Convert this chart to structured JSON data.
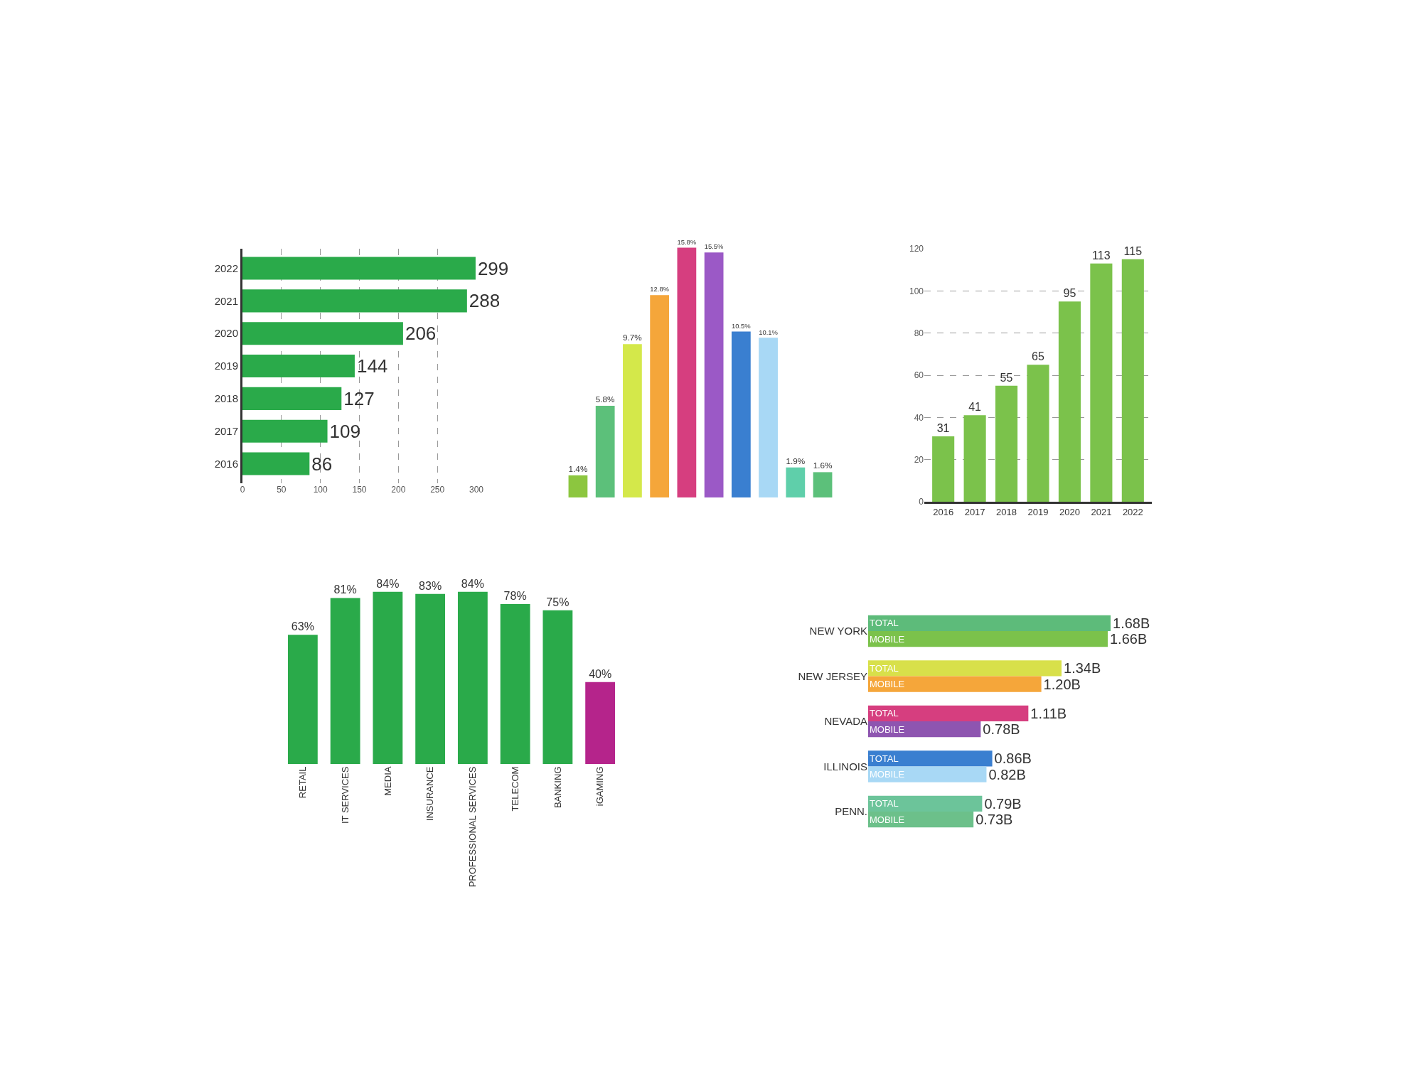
{
  "chart_data": [
    {
      "type": "bar",
      "orientation": "horizontal",
      "categories": [
        "2022",
        "2021",
        "2020",
        "2019",
        "2018",
        "2017",
        "2016"
      ],
      "values": [
        299,
        288,
        206,
        144,
        127,
        109,
        86
      ],
      "color": "#2aaa4a",
      "xlim": [
        0,
        300
      ],
      "xticks": [
        0,
        50,
        100,
        150,
        200,
        250,
        300
      ],
      "grid": "x",
      "data_labels": true
    },
    {
      "type": "bar",
      "categories": [
        null,
        null,
        null,
        null,
        null,
        null,
        null,
        null,
        null,
        null
      ],
      "values": [
        1.4,
        5.8,
        9.7,
        12.8,
        15.8,
        15.5,
        10.5,
        10.1,
        1.9,
        1.6
      ],
      "colors": [
        "#8cc63f",
        "#5cc07a",
        "#d4e84a",
        "#f5a63a",
        "#d63e7f",
        "#9b59c6",
        "#3a7fd0",
        "#a8d8f5",
        "#5fcfaa",
        "#5cc07a"
      ],
      "value_labels": [
        "1.4%",
        "5.8%",
        "9.7%",
        "12.8%",
        "15.8%",
        "15.5%",
        "10.5%",
        "10.1%",
        "1.9%",
        "1.6%"
      ]
    },
    {
      "type": "bar",
      "categories": [
        "2016",
        "2017",
        "2018",
        "2019",
        "2020",
        "2021",
        "2022"
      ],
      "values": [
        31,
        41,
        55,
        65,
        95,
        113,
        115
      ],
      "color": "#7bc24b",
      "ylim": [
        0,
        120
      ],
      "yticks": [
        0,
        20,
        40,
        60,
        80,
        100,
        120
      ],
      "grid": "y",
      "data_labels": true
    },
    {
      "type": "bar",
      "categories": [
        "RETAIL",
        "IT SERVICES",
        "MEDIA",
        "INSURANCE",
        "PROFESSIONAL SERVICES",
        "TELECOM",
        "BANKING",
        "iGAMING"
      ],
      "values": [
        63,
        81,
        84,
        83,
        84,
        78,
        75,
        40
      ],
      "colors": [
        "#2aaa4a",
        "#2aaa4a",
        "#2aaa4a",
        "#2aaa4a",
        "#2aaa4a",
        "#2aaa4a",
        "#2aaa4a",
        "#b5248b"
      ],
      "value_labels": [
        "63%",
        "81%",
        "84%",
        "83%",
        "84%",
        "78%",
        "75%",
        "40%"
      ],
      "tick_labels": "x"
    },
    {
      "type": "bar",
      "orientation": "horizontal",
      "categories": [
        "NEW YORK",
        "NEW JERSEY",
        "NEVADA",
        "ILLINOIS",
        "PENN."
      ],
      "tick_labels": "y",
      "series": [
        {
          "name": "TOTAL",
          "colors": [
            "#5dbb7a",
            "#d8e04a",
            "#d63e7f",
            "#3a7fd0",
            "#6cc49a"
          ],
          "values": [
            1.68,
            1.34,
            1.11,
            0.86,
            0.79
          ],
          "value_labels": [
            "1.68B",
            "1.34B",
            "1.11B",
            "0.86B",
            "0.79B"
          ]
        },
        {
          "name": "MOBILE",
          "colors": [
            "#7bc24b",
            "#f5a63a",
            "#8e55b0",
            "#a8d8f5",
            "#6cc08a"
          ],
          "values": [
            1.66,
            1.2,
            0.78,
            0.82,
            0.73
          ],
          "value_labels": [
            "1.66B",
            "1.20B",
            "0.78B",
            "0.82B",
            "0.73B"
          ]
        }
      ]
    }
  ]
}
